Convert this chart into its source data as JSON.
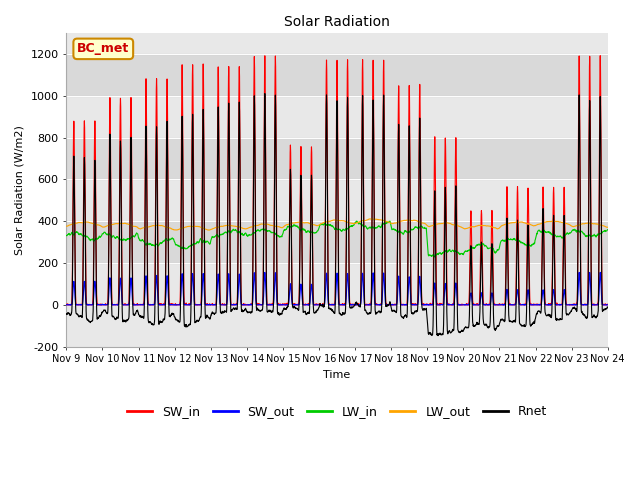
{
  "title": "Solar Radiation",
  "ylabel": "Solar Radiation (W/m2)",
  "xlabel": "Time",
  "ylim": [
    -200,
    1300
  ],
  "yticks": [
    -200,
    0,
    200,
    400,
    600,
    800,
    1000,
    1200
  ],
  "xtick_labels": [
    "Nov 9",
    "Nov 10",
    "Nov 11",
    "Nov 12",
    "Nov 13",
    "Nov 14",
    "Nov 15",
    "Nov 16",
    "Nov 17",
    "Nov 18",
    "Nov 19",
    "Nov 20",
    "Nov 21",
    "Nov 22",
    "Nov 23",
    "Nov 24"
  ],
  "colors": {
    "SW_in": "#ff0000",
    "SW_out": "#0000ff",
    "LW_in": "#00cc00",
    "LW_out": "#ffa500",
    "Rnet": "#000000"
  },
  "label_box": "BC_met",
  "label_box_bg": "#ffffcc",
  "label_box_edge": "#cc8800",
  "label_box_text": "#cc0000",
  "ax_bg_color": "#e8e8e8",
  "band_color": "#d4d4d4",
  "day_peaks_SW_in": [
    880,
    990,
    1080,
    1150,
    1140,
    1190,
    760,
    1170,
    1170,
    1050,
    800,
    450,
    560,
    560,
    1190
  ],
  "LW_out_base": 370,
  "LW_in_base": 330,
  "title_fontsize": 10,
  "label_fontsize": 8,
  "tick_fontsize": 7
}
